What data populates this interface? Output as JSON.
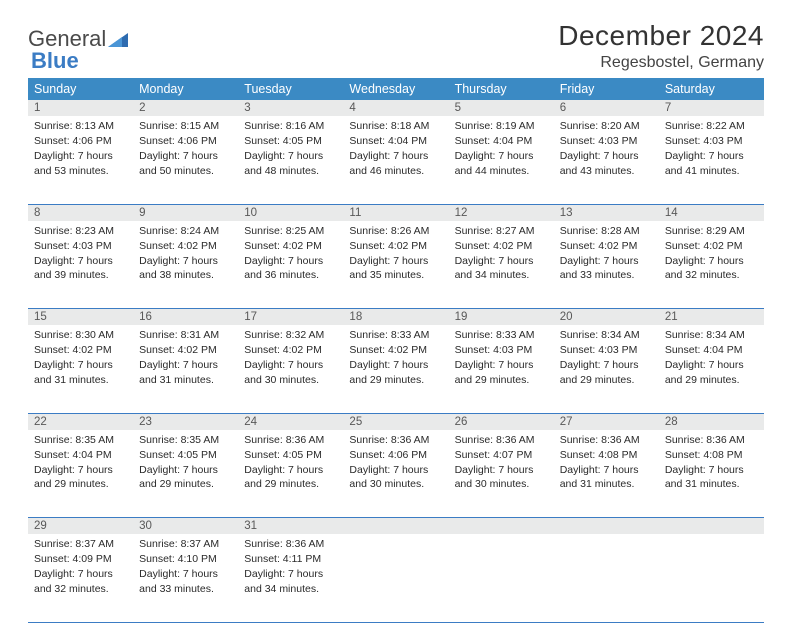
{
  "logo": {
    "text1": "General",
    "text2": "Blue"
  },
  "title": "December 2024",
  "location": "Regesbostel, Germany",
  "colors": {
    "header_bg": "#3b8ac4",
    "header_text": "#ffffff",
    "daynum_bg": "#e9eaea",
    "daynum_text": "#585858",
    "rule": "#3b7cc4",
    "body_text": "#2a2a2a",
    "logo_gray": "#4a4a4a",
    "logo_blue": "#3b7cc4"
  },
  "typography": {
    "title_fontsize": 28,
    "location_fontsize": 16,
    "header_fontsize": 12.5,
    "daynum_fontsize": 11.5,
    "cell_fontsize": 10.5
  },
  "weekdays": [
    "Sunday",
    "Monday",
    "Tuesday",
    "Wednesday",
    "Thursday",
    "Friday",
    "Saturday"
  ],
  "weeks": [
    [
      {
        "num": "1",
        "sunrise": "Sunrise: 8:13 AM",
        "sunset": "Sunset: 4:06 PM",
        "daylight": "Daylight: 7 hours and 53 minutes."
      },
      {
        "num": "2",
        "sunrise": "Sunrise: 8:15 AM",
        "sunset": "Sunset: 4:06 PM",
        "daylight": "Daylight: 7 hours and 50 minutes."
      },
      {
        "num": "3",
        "sunrise": "Sunrise: 8:16 AM",
        "sunset": "Sunset: 4:05 PM",
        "daylight": "Daylight: 7 hours and 48 minutes."
      },
      {
        "num": "4",
        "sunrise": "Sunrise: 8:18 AM",
        "sunset": "Sunset: 4:04 PM",
        "daylight": "Daylight: 7 hours and 46 minutes."
      },
      {
        "num": "5",
        "sunrise": "Sunrise: 8:19 AM",
        "sunset": "Sunset: 4:04 PM",
        "daylight": "Daylight: 7 hours and 44 minutes."
      },
      {
        "num": "6",
        "sunrise": "Sunrise: 8:20 AM",
        "sunset": "Sunset: 4:03 PM",
        "daylight": "Daylight: 7 hours and 43 minutes."
      },
      {
        "num": "7",
        "sunrise": "Sunrise: 8:22 AM",
        "sunset": "Sunset: 4:03 PM",
        "daylight": "Daylight: 7 hours and 41 minutes."
      }
    ],
    [
      {
        "num": "8",
        "sunrise": "Sunrise: 8:23 AM",
        "sunset": "Sunset: 4:03 PM",
        "daylight": "Daylight: 7 hours and 39 minutes."
      },
      {
        "num": "9",
        "sunrise": "Sunrise: 8:24 AM",
        "sunset": "Sunset: 4:02 PM",
        "daylight": "Daylight: 7 hours and 38 minutes."
      },
      {
        "num": "10",
        "sunrise": "Sunrise: 8:25 AM",
        "sunset": "Sunset: 4:02 PM",
        "daylight": "Daylight: 7 hours and 36 minutes."
      },
      {
        "num": "11",
        "sunrise": "Sunrise: 8:26 AM",
        "sunset": "Sunset: 4:02 PM",
        "daylight": "Daylight: 7 hours and 35 minutes."
      },
      {
        "num": "12",
        "sunrise": "Sunrise: 8:27 AM",
        "sunset": "Sunset: 4:02 PM",
        "daylight": "Daylight: 7 hours and 34 minutes."
      },
      {
        "num": "13",
        "sunrise": "Sunrise: 8:28 AM",
        "sunset": "Sunset: 4:02 PM",
        "daylight": "Daylight: 7 hours and 33 minutes."
      },
      {
        "num": "14",
        "sunrise": "Sunrise: 8:29 AM",
        "sunset": "Sunset: 4:02 PM",
        "daylight": "Daylight: 7 hours and 32 minutes."
      }
    ],
    [
      {
        "num": "15",
        "sunrise": "Sunrise: 8:30 AM",
        "sunset": "Sunset: 4:02 PM",
        "daylight": "Daylight: 7 hours and 31 minutes."
      },
      {
        "num": "16",
        "sunrise": "Sunrise: 8:31 AM",
        "sunset": "Sunset: 4:02 PM",
        "daylight": "Daylight: 7 hours and 31 minutes."
      },
      {
        "num": "17",
        "sunrise": "Sunrise: 8:32 AM",
        "sunset": "Sunset: 4:02 PM",
        "daylight": "Daylight: 7 hours and 30 minutes."
      },
      {
        "num": "18",
        "sunrise": "Sunrise: 8:33 AM",
        "sunset": "Sunset: 4:02 PM",
        "daylight": "Daylight: 7 hours and 29 minutes."
      },
      {
        "num": "19",
        "sunrise": "Sunrise: 8:33 AM",
        "sunset": "Sunset: 4:03 PM",
        "daylight": "Daylight: 7 hours and 29 minutes."
      },
      {
        "num": "20",
        "sunrise": "Sunrise: 8:34 AM",
        "sunset": "Sunset: 4:03 PM",
        "daylight": "Daylight: 7 hours and 29 minutes."
      },
      {
        "num": "21",
        "sunrise": "Sunrise: 8:34 AM",
        "sunset": "Sunset: 4:04 PM",
        "daylight": "Daylight: 7 hours and 29 minutes."
      }
    ],
    [
      {
        "num": "22",
        "sunrise": "Sunrise: 8:35 AM",
        "sunset": "Sunset: 4:04 PM",
        "daylight": "Daylight: 7 hours and 29 minutes."
      },
      {
        "num": "23",
        "sunrise": "Sunrise: 8:35 AM",
        "sunset": "Sunset: 4:05 PM",
        "daylight": "Daylight: 7 hours and 29 minutes."
      },
      {
        "num": "24",
        "sunrise": "Sunrise: 8:36 AM",
        "sunset": "Sunset: 4:05 PM",
        "daylight": "Daylight: 7 hours and 29 minutes."
      },
      {
        "num": "25",
        "sunrise": "Sunrise: 8:36 AM",
        "sunset": "Sunset: 4:06 PM",
        "daylight": "Daylight: 7 hours and 30 minutes."
      },
      {
        "num": "26",
        "sunrise": "Sunrise: 8:36 AM",
        "sunset": "Sunset: 4:07 PM",
        "daylight": "Daylight: 7 hours and 30 minutes."
      },
      {
        "num": "27",
        "sunrise": "Sunrise: 8:36 AM",
        "sunset": "Sunset: 4:08 PM",
        "daylight": "Daylight: 7 hours and 31 minutes."
      },
      {
        "num": "28",
        "sunrise": "Sunrise: 8:36 AM",
        "sunset": "Sunset: 4:08 PM",
        "daylight": "Daylight: 7 hours and 31 minutes."
      }
    ],
    [
      {
        "num": "29",
        "sunrise": "Sunrise: 8:37 AM",
        "sunset": "Sunset: 4:09 PM",
        "daylight": "Daylight: 7 hours and 32 minutes."
      },
      {
        "num": "30",
        "sunrise": "Sunrise: 8:37 AM",
        "sunset": "Sunset: 4:10 PM",
        "daylight": "Daylight: 7 hours and 33 minutes."
      },
      {
        "num": "31",
        "sunrise": "Sunrise: 8:36 AM",
        "sunset": "Sunset: 4:11 PM",
        "daylight": "Daylight: 7 hours and 34 minutes."
      },
      null,
      null,
      null,
      null
    ]
  ]
}
